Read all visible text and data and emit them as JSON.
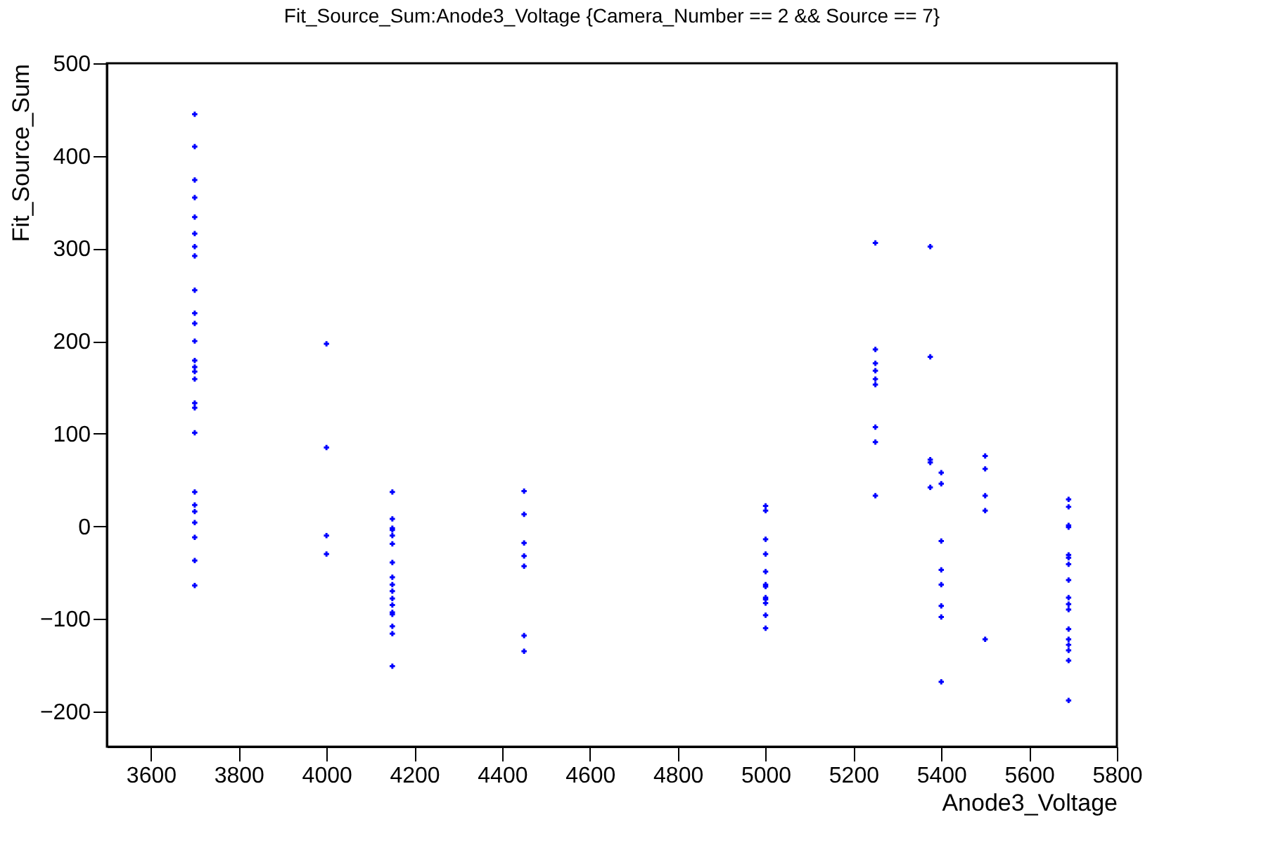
{
  "chart_data": {
    "type": "scatter",
    "title": "Fit_Source_Sum:Anode3_Voltage {Camera_Number == 2 && Source == 7}",
    "xlabel": "Anode3_Voltage",
    "ylabel": "Fit_Source_Sum",
    "xlim": [
      3500,
      5800
    ],
    "ylim": [
      -238,
      500
    ],
    "xticks": [
      3600,
      3800,
      4000,
      4200,
      4400,
      4600,
      4800,
      5000,
      5200,
      5400,
      5600,
      5800
    ],
    "yticks": [
      -200,
      -100,
      0,
      100,
      200,
      300,
      400,
      500
    ],
    "grid": false,
    "legend": false,
    "marker": "cross",
    "series": [
      {
        "color": "#0000ff",
        "x": [
          3700,
          3700,
          3700,
          3700,
          3700,
          3700,
          3700,
          3700,
          3700,
          3700,
          3700,
          3700,
          3700,
          3700,
          3700,
          3700,
          3700,
          3700,
          3700,
          3700,
          3700,
          3700,
          3700,
          3700,
          3700,
          3700,
          4000,
          4000,
          4000,
          4000,
          4150,
          4150,
          4150,
          4150,
          4150,
          4150,
          4150,
          4150,
          4150,
          4150,
          4150,
          4150,
          4150,
          4150,
          4150,
          4150,
          4150,
          4450,
          4450,
          4450,
          4450,
          4450,
          4450,
          4450,
          5000,
          5000,
          5000,
          5000,
          5000,
          5000,
          5000,
          5000,
          5000,
          5000,
          5000,
          5000,
          5250,
          5250,
          5250,
          5250,
          5250,
          5250,
          5250,
          5250,
          5250,
          5375,
          5375,
          5375,
          5375,
          5375,
          5400,
          5400,
          5400,
          5400,
          5400,
          5400,
          5400,
          5400,
          5500,
          5500,
          5500,
          5500,
          5500,
          5690,
          5690,
          5690,
          5690,
          5690,
          5690,
          5690,
          5690,
          5690,
          5690,
          5690,
          5690,
          5690,
          5690,
          5690,
          5690,
          5690
        ],
        "values": [
          445,
          410,
          374,
          355,
          334,
          316,
          302,
          292,
          255,
          230,
          219,
          200,
          179,
          172,
          167,
          159,
          133,
          128,
          101,
          37,
          23,
          16,
          4,
          -12,
          -37,
          -64,
          197,
          85,
          -10,
          -30,
          37,
          8,
          -2,
          -4,
          -10,
          -19,
          -39,
          -55,
          -63,
          -70,
          -78,
          -85,
          -93,
          -95,
          -108,
          -116,
          -151,
          38,
          13,
          -18,
          -32,
          -43,
          -118,
          -135,
          22,
          17,
          -14,
          -30,
          -49,
          -63,
          -65,
          -77,
          -79,
          -83,
          -96,
          -110,
          306,
          191,
          176,
          168,
          159,
          153,
          107,
          91,
          33,
          302,
          183,
          72,
          69,
          42,
          58,
          46,
          -16,
          -47,
          -63,
          -86,
          -98,
          -168,
          76,
          62,
          33,
          17,
          -122,
          29,
          21,
          1,
          -1,
          -31,
          -34,
          -41,
          -58,
          -77,
          -84,
          -90,
          -111,
          -122,
          -128,
          -134,
          -145,
          -188
        ]
      }
    ]
  }
}
